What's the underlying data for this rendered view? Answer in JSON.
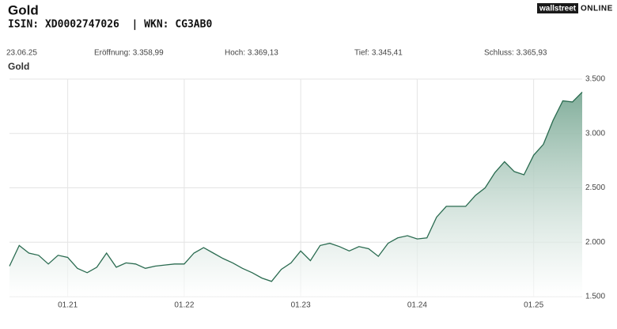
{
  "header": {
    "title": "Gold",
    "subtitle": "ISIN: XD0002747026  | WKN: CG3AB0",
    "logo": [
      "wallstreet",
      "ONLINE"
    ]
  },
  "info": {
    "date": "23.06.25",
    "items": [
      "Eröffnung: 3.358,99",
      "Hoch: 3.369,13",
      "Tief: 3.345,41",
      "Schluss: 3.365,93"
    ]
  },
  "chart_data": {
    "type": "line",
    "x": [
      "2020-07",
      "2020-08",
      "2020-09",
      "2020-10",
      "2020-11",
      "2020-12",
      "2021-01",
      "2021-02",
      "2021-03",
      "2021-04",
      "2021-05",
      "2021-06",
      "2021-07",
      "2021-08",
      "2021-09",
      "2021-10",
      "2021-11",
      "2021-12",
      "2022-01",
      "2022-02",
      "2022-03",
      "2022-04",
      "2022-05",
      "2022-06",
      "2022-07",
      "2022-08",
      "2022-09",
      "2022-10",
      "2022-11",
      "2022-12",
      "2023-01",
      "2023-02",
      "2023-03",
      "2023-04",
      "2023-05",
      "2023-06",
      "2023-07",
      "2023-08",
      "2023-09",
      "2023-10",
      "2023-11",
      "2023-12",
      "2024-01",
      "2024-02",
      "2024-03",
      "2024-04",
      "2024-05",
      "2024-06",
      "2024-07",
      "2024-08",
      "2024-09",
      "2024-10",
      "2024-11",
      "2024-12",
      "2025-01",
      "2025-02",
      "2025-03",
      "2025-04",
      "2025-05",
      "2025-06"
    ],
    "series": [
      {
        "name": "Gold",
        "color": "#2a6b50",
        "values": [
          1780,
          1970,
          1900,
          1880,
          1800,
          1880,
          1860,
          1760,
          1720,
          1770,
          1900,
          1770,
          1810,
          1800,
          1760,
          1780,
          1790,
          1800,
          1800,
          1900,
          1950,
          1900,
          1850,
          1810,
          1760,
          1720,
          1670,
          1640,
          1750,
          1810,
          1920,
          1830,
          1970,
          1990,
          1960,
          1920,
          1960,
          1940,
          1870,
          1990,
          2040,
          2060,
          2030,
          2040,
          2230,
          2330,
          2330,
          2330,
          2430,
          2500,
          2640,
          2740,
          2650,
          2620,
          2800,
          2900,
          3120,
          3300,
          3290,
          3380
        ]
      }
    ],
    "xlim": [
      "2020-07",
      "2025-06"
    ],
    "xticks": [
      {
        "value": "2021-01",
        "label": "01.21"
      },
      {
        "value": "2022-01",
        "label": "01.22"
      },
      {
        "value": "2023-01",
        "label": "01.23"
      },
      {
        "value": "2024-01",
        "label": "01.24"
      },
      {
        "value": "2025-01",
        "label": "01.25"
      }
    ],
    "ylim": [
      1500,
      3500
    ],
    "yticks": [
      {
        "value": 1500,
        "label": "1.500"
      },
      {
        "value": 2000,
        "label": "2.000"
      },
      {
        "value": 2500,
        "label": "2.500"
      },
      {
        "value": 3000,
        "label": "3.000"
      },
      {
        "value": 3500,
        "label": "3.500"
      }
    ],
    "grid": true
  }
}
